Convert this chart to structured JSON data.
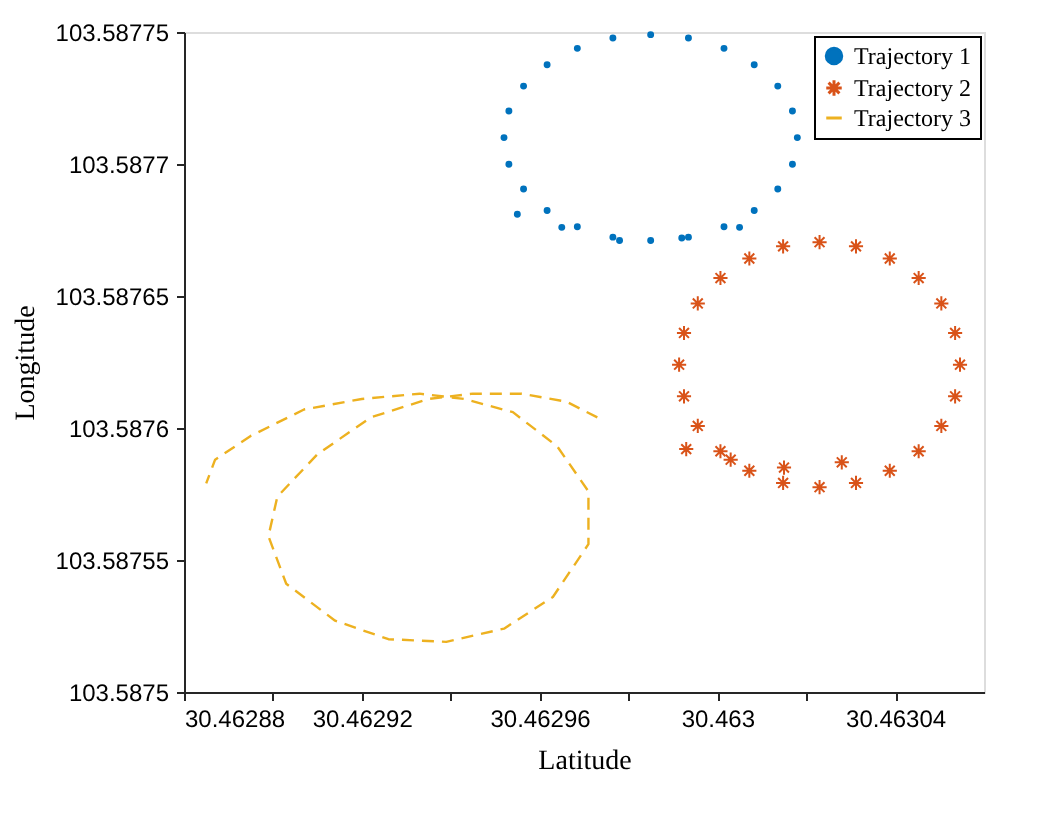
{
  "chart_data": {
    "type": "scatter",
    "xlabel": "Latitude",
    "ylabel": "Longitude",
    "xlim": [
      30.46288,
      30.46306
    ],
    "ylim": [
      103.5875,
      103.58775
    ],
    "xticks": [
      30.46288,
      {
        "value": 30.4629,
        "label": null
      },
      30.46292,
      {
        "value": 30.46294,
        "label": null
      },
      30.46296,
      {
        "value": 30.46298,
        "label": null
      },
      30.463,
      {
        "value": 30.46302,
        "label": null
      },
      30.46304
    ],
    "yticks": [
      103.5875,
      103.58755,
      103.5876,
      103.58765,
      103.5877,
      103.58775
    ],
    "grid": false,
    "legend": "top right",
    "series": [
      {
        "name": "Trajectory 1",
        "marker": "circle",
        "color": "#0072bd",
        "x": [
          30.463018,
          30.4630169,
          30.4630136,
          30.4630083,
          30.4630015,
          30.4629935,
          30.462985,
          30.4629765,
          30.4629685,
          30.4629617,
          30.4629564,
          30.4629531,
          30.462952,
          30.4629531,
          30.4629564,
          30.4629617,
          30.4629685,
          30.4629765,
          30.462985,
          30.4629935,
          30.4630015,
          30.4630083,
          30.4630136,
          30.4630169,
          30.462955,
          30.462965,
          30.462978,
          30.462992,
          30.463005
        ],
        "values": [
          103.58771,
          103.5877201,
          103.5877295,
          103.5877376,
          103.5877438,
          103.5877477,
          103.587749,
          103.5877477,
          103.5877438,
          103.5877376,
          103.5877295,
          103.5877201,
          103.58771,
          103.5876999,
          103.5876905,
          103.5876824,
          103.5876762,
          103.5876723,
          103.587671,
          103.5876723,
          103.5876762,
          103.5876824,
          103.5876905,
          103.5876999,
          103.587681,
          103.587676,
          103.587671,
          103.587672,
          103.587676
        ]
      },
      {
        "name": "Trajectory 2",
        "marker": "cross",
        "color": "#d95319",
        "x": [
          30.4630546,
          30.4630535,
          30.4630504,
          30.4630453,
          30.4630388,
          30.4630312,
          30.463023,
          30.4630148,
          30.4630072,
          30.4630007,
          30.4629956,
          30.4629925,
          30.4629914,
          30.4629925,
          30.4629956,
          30.4630007,
          30.4630072,
          30.4630148,
          30.463023,
          30.4630312,
          30.4630388,
          30.4630453,
          30.4630504,
          30.4630535,
          30.462993,
          30.463003,
          30.463015,
          30.463028
        ],
        "values": [
          103.587624,
          103.587636,
          103.5876472,
          103.5876568,
          103.5876642,
          103.5876688,
          103.5876704,
          103.5876688,
          103.5876642,
          103.5876568,
          103.5876472,
          103.587636,
          103.587624,
          103.587612,
          103.5876008,
          103.5875912,
          103.5875838,
          103.5875792,
          103.5875776,
          103.5875792,
          103.5875838,
          103.5875912,
          103.5876008,
          103.587612,
          103.587592,
          103.587588,
          103.587585,
          103.587587
        ]
      },
      {
        "name": "Trajectory 3",
        "type": "line",
        "marker": "none",
        "line_style": "dashed",
        "color": "#edb120",
        "x": [
          30.462973,
          30.462966,
          30.462956,
          30.462945,
          30.462935,
          30.462922,
          30.46291,
          30.462901,
          30.462899,
          30.462903,
          30.462914,
          30.462926,
          30.462939,
          30.462952,
          30.462963,
          30.462971,
          30.462971,
          30.462964,
          30.462954,
          30.462943,
          30.462933,
          30.46292,
          30.462907,
          30.462895,
          30.462887,
          30.462885
        ],
        "values": [
          103.587604,
          103.58761,
          103.587613,
          103.587613,
          103.587611,
          103.587604,
          103.58759,
          103.587574,
          103.587559,
          103.587541,
          103.587527,
          103.58752,
          103.587519,
          103.587524,
          103.587536,
          103.587556,
          103.587576,
          103.587593,
          103.587606,
          103.587611,
          103.587613,
          103.587611,
          103.587607,
          103.587597,
          103.587588,
          103.587579
        ]
      }
    ]
  }
}
